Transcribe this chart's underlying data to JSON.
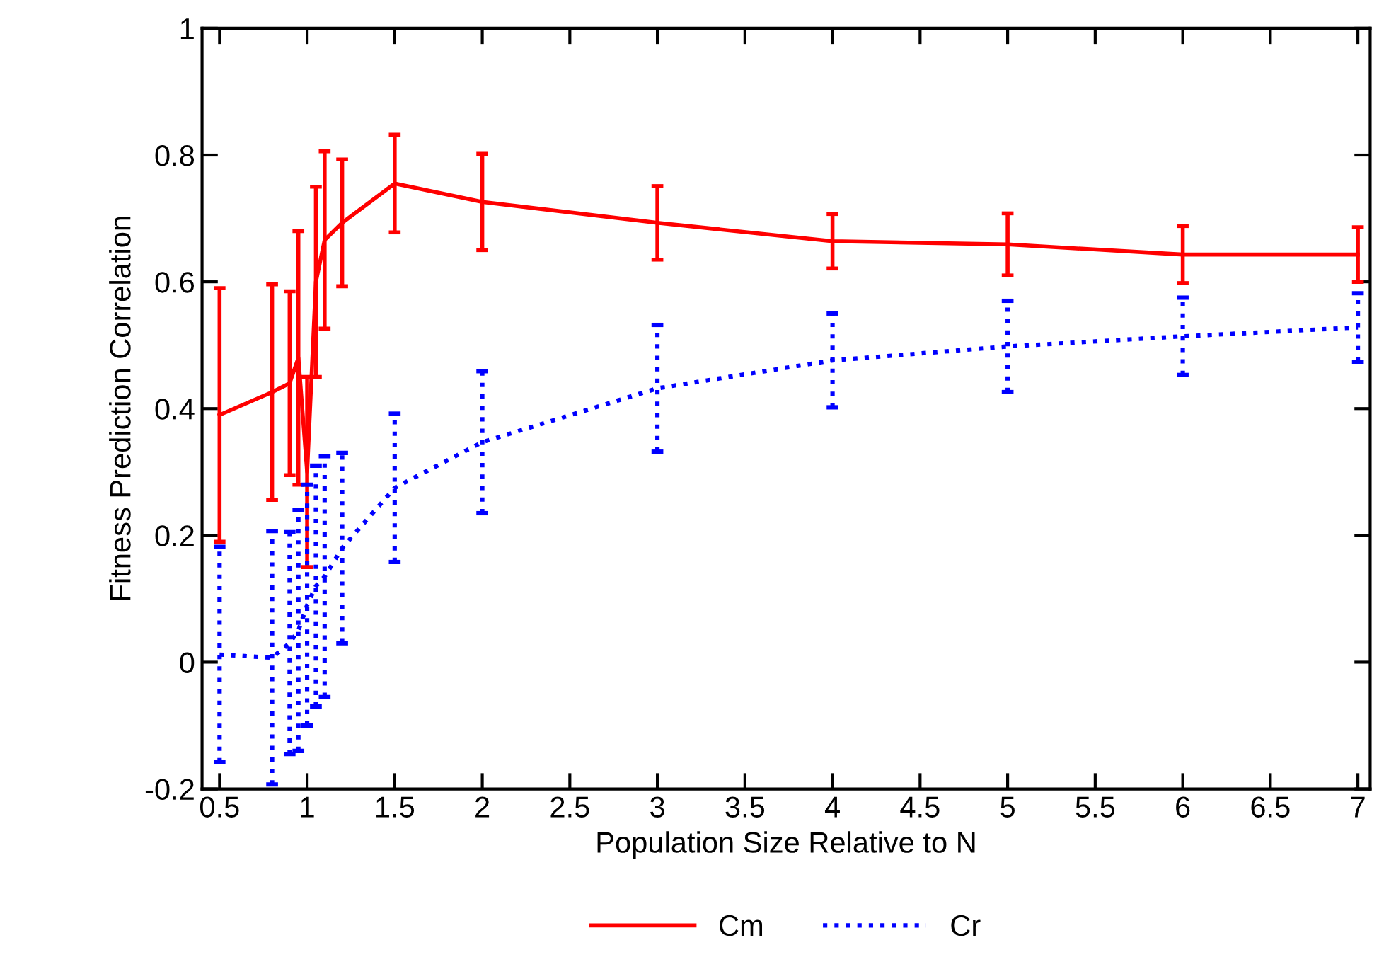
{
  "chart_data": {
    "type": "line",
    "xlabel": "Population Size Relative to N",
    "ylabel": "Fitness Prediction Correlation",
    "xlim": [
      0.4,
      7.07
    ],
    "xticks": [
      {
        "value": 0.5,
        "label": "0.5"
      },
      1,
      {
        "value": 1.5,
        "label": "1.5"
      },
      2,
      {
        "value": 2.5,
        "label": "2.5"
      },
      3,
      {
        "value": 3.5,
        "label": "3.5"
      },
      4,
      {
        "value": 4.5,
        "label": "4.5"
      },
      5,
      {
        "value": 5.5,
        "label": "5.5"
      },
      6,
      {
        "value": 6.5,
        "label": "6.5"
      },
      7
    ],
    "ylim": [
      -0.2,
      1
    ],
    "yticks": [
      {
        "value": -0.2,
        "label": "-0.2"
      },
      0,
      {
        "value": 0.2,
        "label": "0.2"
      },
      {
        "value": 0.4,
        "label": "0.4"
      },
      {
        "value": 0.6,
        "label": "0.6"
      },
      {
        "value": 0.8,
        "label": "0.8"
      },
      1
    ],
    "x": [
      0.5,
      0.8,
      0.9,
      0.95,
      1.0,
      1.05,
      1.1,
      1.2,
      1.5,
      2,
      3,
      4,
      5,
      6,
      7
    ],
    "grid": false,
    "legend": "bottom",
    "marker": "none",
    "series": [
      {
        "name": "Cm",
        "color": "#ff0000",
        "line_style": "solid",
        "values": [
          0.39,
          0.426,
          0.44,
          0.48,
          0.3,
          0.6,
          0.666,
          0.693,
          0.755,
          0.726,
          0.693,
          0.664,
          0.659,
          0.643,
          0.643
        ],
        "errors": [
          0.2,
          0.17,
          0.145,
          0.2,
          0.15,
          0.15,
          0.14,
          0.1,
          0.077,
          0.076,
          0.058,
          0.043,
          0.049,
          0.045,
          0.043
        ]
      },
      {
        "name": "Cr",
        "color": "#0000ff",
        "line_style": "dotted",
        "values": [
          0.012,
          0.007,
          0.03,
          0.05,
          0.09,
          0.12,
          0.135,
          0.18,
          0.275,
          0.347,
          0.432,
          0.476,
          0.498,
          0.514,
          0.528
        ],
        "errors": [
          0.17,
          0.2,
          0.175,
          0.19,
          0.19,
          0.19,
          0.19,
          0.15,
          0.117,
          0.112,
          0.1,
          0.074,
          0.072,
          0.061,
          0.054
        ]
      }
    ]
  }
}
